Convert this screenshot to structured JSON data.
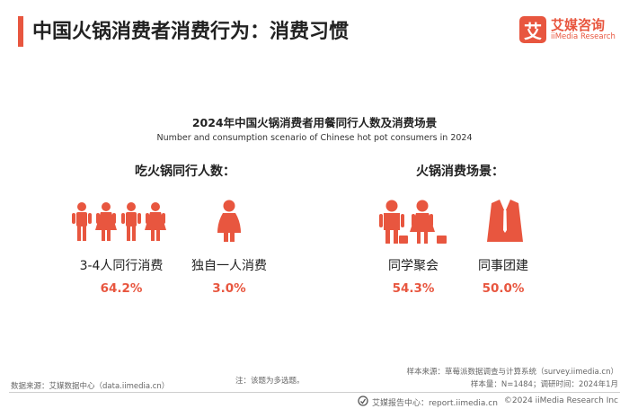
{
  "header": {
    "title": "中国火锅消费者消费行为：消费习惯",
    "logo_mark": "艾",
    "logo_cn": "艾媒咨询",
    "logo_en": "iiMedia Research"
  },
  "figure": {
    "title": "2024年中国火锅消费者用餐同行人数及消费场景",
    "subtitle": "Number and consumption scenario of Chinese hot pot consumers in 2024"
  },
  "sections": [
    {
      "title": "吃火锅同行人数：",
      "items": [
        {
          "label": "3-4人同行消费",
          "value": "64.2%",
          "icon": "family-group-icon"
        },
        {
          "label": "独自一人消费",
          "value": "3.0%",
          "icon": "single-person-icon"
        }
      ]
    },
    {
      "title": "火锅消费场景：",
      "items": [
        {
          "label": "同学聚会",
          "value": "54.3%",
          "icon": "classmates-icon"
        },
        {
          "label": "同事团建",
          "value": "50.0%",
          "icon": "business-suit-icon"
        }
      ]
    }
  ],
  "footer": {
    "sample_source": "样本来源：草莓派数据调查与计算系统（survey.iimedia.cn）",
    "sample_info": "样本量：N=1484；调研时间：2024年1月",
    "data_source": "数据来源：艾媒数据中心（data.iimedia.cn）",
    "note": "注：该题为多选题。",
    "report_center": "艾媒报告中心：report.iimedia.cn",
    "copyright": "©2024  iiMedia Research  Inc"
  },
  "colors": {
    "accent": "#e8563f",
    "text": "#222222"
  }
}
